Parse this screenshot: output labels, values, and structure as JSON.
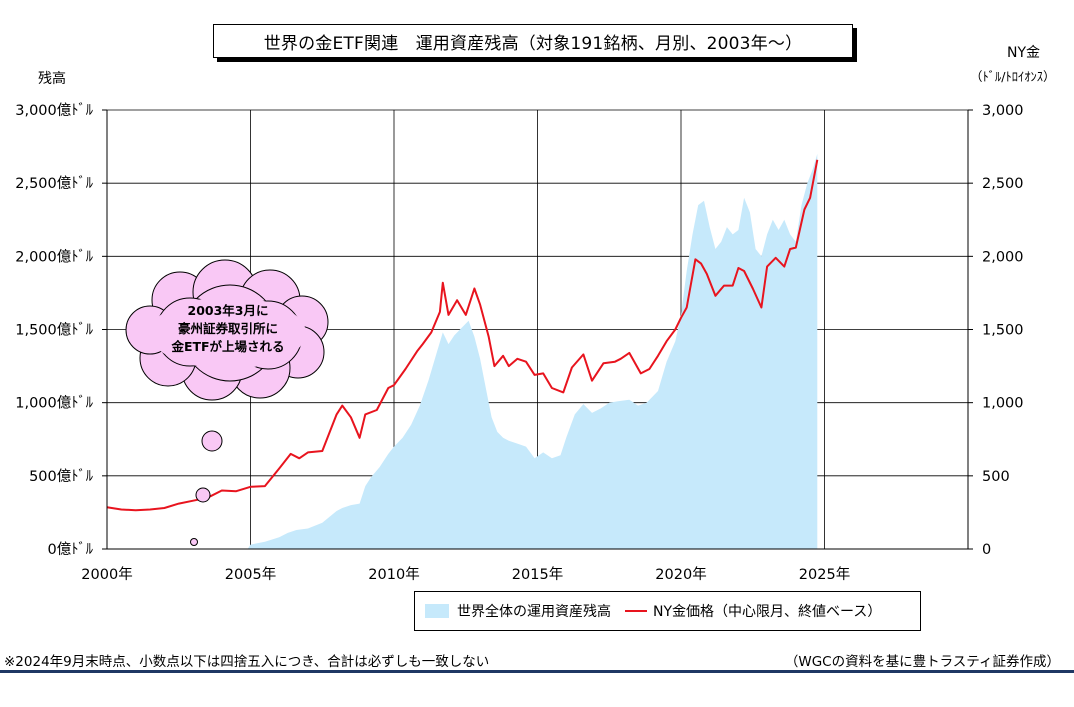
{
  "chart_data": {
    "type": "area+line",
    "title": "世界の金ETF関連　運用資産残高（対象191銘柄、月別、2003年～）",
    "y_left_label": "残高",
    "y_right_label_line1": "NY金",
    "y_right_label_line2": "（ﾄﾞﾙ/ﾄﾛｲｵﾝｽ）",
    "y_left_ticks": [
      "0億ﾄﾞﾙ",
      "500億ﾄﾞﾙ",
      "1,000億ﾄﾞﾙ",
      "1,500億ﾄﾞﾙ",
      "2,000億ﾄﾞﾙ",
      "2,500億ﾄﾞﾙ",
      "3,000億ﾄﾞﾙ"
    ],
    "y_right_ticks": [
      "0",
      "500",
      "1,000",
      "1,500",
      "2,000",
      "2,500",
      "3,000"
    ],
    "x_ticks": [
      "2000年",
      "2005年",
      "2010年",
      "2015年",
      "2020年",
      "2025年"
    ],
    "x_range": [
      2000,
      2030
    ],
    "y_range": [
      0,
      3000
    ],
    "grid": true,
    "legend": "bottom",
    "series": [
      {
        "name": "世界全体の運用資産残高",
        "type": "area",
        "color": "#c6e9fb",
        "unit": "億ドル",
        "x": [
          2004.9,
          2005.0,
          2005.5,
          2006.0,
          2006.3,
          2006.6,
          2007.0,
          2007.5,
          2008.0,
          2008.2,
          2008.5,
          2008.8,
          2009.0,
          2009.2,
          2009.5,
          2009.8,
          2010.0,
          2010.3,
          2010.6,
          2010.9,
          2011.2,
          2011.5,
          2011.7,
          2011.9,
          2012.1,
          2012.3,
          2012.6,
          2012.8,
          2013.0,
          2013.2,
          2013.4,
          2013.6,
          2013.8,
          2014.0,
          2014.3,
          2014.6,
          2014.9,
          2015.2,
          2015.5,
          2015.8,
          2016.0,
          2016.3,
          2016.6,
          2016.9,
          2017.2,
          2017.5,
          2017.8,
          2018.2,
          2018.5,
          2018.8,
          2019.2,
          2019.5,
          2019.8,
          2020.0,
          2020.2,
          2020.4,
          2020.6,
          2020.8,
          2021.0,
          2021.2,
          2021.4,
          2021.6,
          2021.8,
          2022.0,
          2022.2,
          2022.4,
          2022.6,
          2022.8,
          2023.0,
          2023.2,
          2023.4,
          2023.6,
          2023.8,
          2024.0,
          2024.2,
          2024.4,
          2024.6,
          2024.75
        ],
        "y": [
          0,
          30,
          50,
          80,
          110,
          130,
          140,
          180,
          260,
          280,
          300,
          310,
          430,
          490,
          560,
          650,
          700,
          760,
          850,
          980,
          1150,
          1350,
          1480,
          1400,
          1460,
          1500,
          1560,
          1450,
          1300,
          1100,
          900,
          800,
          760,
          740,
          720,
          700,
          620,
          660,
          620,
          640,
          760,
          920,
          990,
          930,
          960,
          1000,
          1010,
          1020,
          980,
          1000,
          1080,
          1280,
          1420,
          1600,
          1900,
          2150,
          2350,
          2380,
          2200,
          2050,
          2100,
          2200,
          2150,
          2180,
          2400,
          2300,
          2050,
          2000,
          2150,
          2250,
          2180,
          2250,
          2150,
          2100,
          2350,
          2500,
          2600,
          2700
        ]
      },
      {
        "name": "NY金価格（中心限月、終値ベース）",
        "type": "line",
        "color": "#e8141e",
        "unit": "ドル/トロイオンス",
        "x": [
          2000.0,
          2000.5,
          2001.0,
          2001.5,
          2002.0,
          2002.5,
          2003.0,
          2003.5,
          2004.0,
          2004.5,
          2005.0,
          2005.5,
          2006.0,
          2006.4,
          2006.7,
          2007.0,
          2007.5,
          2008.0,
          2008.2,
          2008.5,
          2008.8,
          2009.0,
          2009.4,
          2009.8,
          2010.0,
          2010.4,
          2010.8,
          2011.0,
          2011.3,
          2011.6,
          2011.7,
          2011.9,
          2012.2,
          2012.5,
          2012.8,
          2013.0,
          2013.3,
          2013.5,
          2013.8,
          2014.0,
          2014.3,
          2014.6,
          2014.9,
          2015.2,
          2015.5,
          2015.9,
          2016.2,
          2016.6,
          2016.9,
          2017.3,
          2017.7,
          2017.9,
          2018.2,
          2018.6,
          2018.9,
          2019.2,
          2019.5,
          2019.8,
          2020.0,
          2020.2,
          2020.5,
          2020.7,
          2020.9,
          2021.2,
          2021.5,
          2021.8,
          2022.0,
          2022.2,
          2022.5,
          2022.8,
          2023.0,
          2023.3,
          2023.6,
          2023.8,
          2024.0,
          2024.3,
          2024.5,
          2024.75
        ],
        "y": [
          285,
          270,
          265,
          270,
          280,
          310,
          330,
          350,
          400,
          395,
          425,
          430,
          550,
          650,
          620,
          660,
          670,
          920,
          980,
          900,
          760,
          920,
          950,
          1100,
          1120,
          1230,
          1350,
          1400,
          1480,
          1620,
          1820,
          1600,
          1700,
          1600,
          1780,
          1670,
          1450,
          1250,
          1320,
          1250,
          1300,
          1280,
          1190,
          1200,
          1100,
          1070,
          1240,
          1330,
          1150,
          1270,
          1280,
          1300,
          1340,
          1200,
          1230,
          1320,
          1420,
          1500,
          1580,
          1650,
          1980,
          1950,
          1880,
          1730,
          1800,
          1800,
          1920,
          1900,
          1780,
          1650,
          1930,
          1990,
          1930,
          2050,
          2060,
          2320,
          2400,
          2660
        ]
      }
    ],
    "annotations": [
      {
        "text_lines": [
          "2003年3月に",
          "豪州証券取引所に",
          "金ETFが上場される"
        ],
        "shape": "thought-cloud",
        "points_to_x": 2003.2
      }
    ]
  },
  "footnote": "※2024年9月末時点、小数点以下は四捨五入につき、合計は必ずしも一致しない",
  "source": "（WGCの資料を基に豊トラスティ証券作成）"
}
